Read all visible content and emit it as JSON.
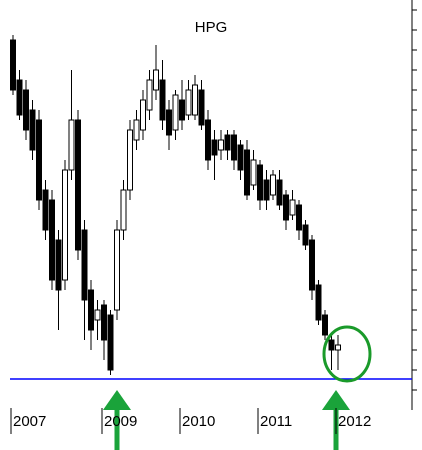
{
  "chart_data": {
    "type": "candlestick",
    "title": "HPG",
    "categories": [
      "2007",
      null,
      null,
      null,
      null,
      null,
      null,
      null,
      null,
      null,
      null,
      null,
      null,
      null,
      "2009",
      null,
      null,
      null,
      null,
      null,
      null,
      null,
      null,
      null,
      null,
      null,
      "2010",
      null,
      null,
      null,
      null,
      null,
      null,
      null,
      null,
      null,
      null,
      null,
      "2011",
      null,
      null,
      null,
      null,
      null,
      null,
      null,
      null,
      null,
      null,
      null,
      "2012"
    ],
    "open": [
      37,
      33,
      32,
      30,
      29,
      22,
      21,
      17,
      13,
      24,
      29,
      18,
      12,
      9,
      10.5,
      9.5,
      10,
      18,
      22,
      27,
      28,
      30,
      32,
      33,
      30,
      28,
      31,
      29.5,
      29.5,
      32,
      29,
      27,
      26,
      27.5,
      27.5,
      26.5,
      26,
      22.5,
      24.5,
      23,
      21.5,
      23,
      21.5,
      19.5,
      20.5,
      18.5,
      17,
      12.5,
      9.5,
      7,
      6
    ],
    "high": [
      37.5,
      34,
      33,
      31,
      30,
      23,
      22,
      18,
      25,
      34,
      30,
      19,
      13,
      11,
      11,
      10,
      19,
      23,
      29,
      30,
      32,
      34,
      36.5,
      35,
      31,
      32,
      33,
      33,
      33.5,
      33,
      30,
      28,
      28,
      28,
      28,
      27,
      27,
      26,
      25,
      24,
      24,
      24,
      22,
      22,
      21,
      19,
      17.5,
      13,
      10,
      7.5,
      7.5
    ],
    "low": [
      31.5,
      29,
      27,
      25,
      20,
      17,
      12,
      8,
      12,
      23,
      15,
      7,
      6,
      7,
      5,
      3.5,
      9,
      17,
      21,
      26,
      27,
      29,
      31,
      28,
      26,
      27,
      28,
      29,
      29,
      28,
      24,
      23,
      25,
      25,
      24,
      23,
      21,
      22,
      20,
      20,
      21,
      20,
      18,
      19,
      17,
      16,
      11,
      8.5,
      7,
      4,
      4
    ],
    "close": [
      32,
      29.5,
      28,
      26,
      21,
      18,
      13,
      12,
      24,
      29,
      16,
      11,
      8,
      10,
      7,
      4,
      18,
      22,
      28,
      29,
      31,
      33,
      34,
      29,
      27.5,
      31.5,
      29,
      32,
      32.5,
      28.5,
      25,
      25.5,
      27,
      26,
      25,
      24,
      21.5,
      25,
      21,
      21,
      23.5,
      20.5,
      19,
      21,
      18,
      16.5,
      12,
      9,
      7.5,
      6,
      6.5
    ],
    "up_color": "#ffffff",
    "down_color": "#000000",
    "hline": {
      "value": 3.1,
      "color": "#0000ff"
    },
    "ylim": [
      0,
      41
    ],
    "yticks": [
      2,
      4,
      6,
      8,
      10,
      12,
      14,
      16,
      18,
      20,
      22,
      24,
      26,
      28,
      30,
      32,
      34,
      36,
      38,
      40
    ]
  }
}
